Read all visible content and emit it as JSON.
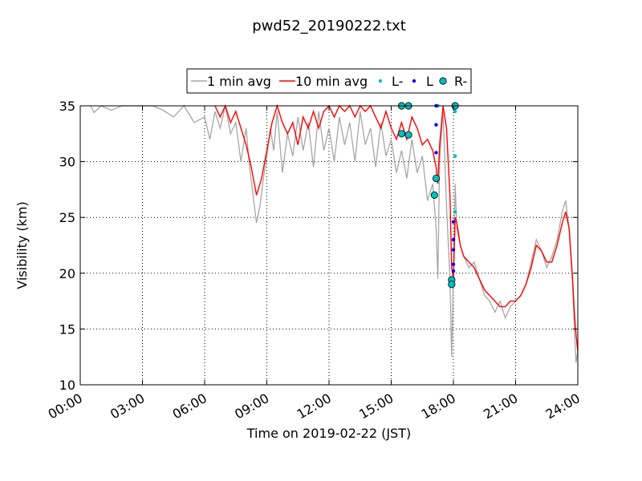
{
  "chart_data": {
    "type": "line",
    "title": "pwd52_20190222.txt",
    "xlabel": "Time on 2019-02-22 (JST)",
    "ylabel": "Visibility (km)",
    "xlim": [
      "00:00",
      "24:00"
    ],
    "ylim": [
      10,
      35
    ],
    "xticks": [
      "00:00",
      "03:00",
      "06:00",
      "09:00",
      "12:00",
      "15:00",
      "18:00",
      "21:00",
      "24:00"
    ],
    "yticks": [
      "10",
      "15",
      "20",
      "25",
      "30",
      "35"
    ],
    "grid": true,
    "legend_position": "top-center",
    "legend": [
      {
        "label": "1 min avg",
        "kind": "line",
        "color": "#a6a6a6"
      },
      {
        "label": "10 min avg",
        "kind": "line",
        "color": "#ff0000"
      },
      {
        "label": "L-",
        "kind": "small-dot",
        "color": "#00bfbf"
      },
      {
        "label": "L",
        "kind": "small-dot",
        "color": "#0000ff"
      },
      {
        "label": "R-",
        "kind": "large-dot",
        "color": "#00bfbf"
      }
    ],
    "series": [
      {
        "name": "1 min avg",
        "color": "#a6a6a6",
        "points": [
          [
            "00:30",
            35.0
          ],
          [
            "00:40",
            34.4
          ],
          [
            "01:00",
            35.0
          ],
          [
            "01:30",
            34.6
          ],
          [
            "02:00",
            35.0
          ],
          [
            "02:30",
            35.0
          ],
          [
            "03:00",
            35.0
          ],
          [
            "03:30",
            35.0
          ],
          [
            "04:00",
            34.6
          ],
          [
            "04:30",
            34.0
          ],
          [
            "05:00",
            35.0
          ],
          [
            "05:30",
            33.5
          ],
          [
            "06:00",
            34.0
          ],
          [
            "06:15",
            32.0
          ],
          [
            "06:30",
            34.5
          ],
          [
            "06:45",
            33.0
          ],
          [
            "07:00",
            35.0
          ],
          [
            "07:15",
            32.5
          ],
          [
            "07:30",
            33.5
          ],
          [
            "07:45",
            30.0
          ],
          [
            "08:00",
            33.0
          ],
          [
            "08:10",
            29.5
          ],
          [
            "08:20",
            27.0
          ],
          [
            "08:30",
            24.5
          ],
          [
            "08:40",
            26.0
          ],
          [
            "08:50",
            28.5
          ],
          [
            "09:00",
            30.5
          ],
          [
            "09:10",
            33.0
          ],
          [
            "09:20",
            31.0
          ],
          [
            "09:30",
            34.5
          ],
          [
            "09:45",
            29.0
          ],
          [
            "10:00",
            32.5
          ],
          [
            "10:15",
            30.5
          ],
          [
            "10:30",
            34.0
          ],
          [
            "10:45",
            31.0
          ],
          [
            "11:00",
            33.5
          ],
          [
            "11:15",
            29.5
          ],
          [
            "11:30",
            34.5
          ],
          [
            "11:45",
            31.0
          ],
          [
            "12:00",
            33.0
          ],
          [
            "12:15",
            30.0
          ],
          [
            "12:30",
            34.0
          ],
          [
            "12:45",
            31.5
          ],
          [
            "13:00",
            33.5
          ],
          [
            "13:15",
            30.0
          ],
          [
            "13:30",
            34.5
          ],
          [
            "13:45",
            31.5
          ],
          [
            "14:00",
            33.0
          ],
          [
            "14:15",
            29.5
          ],
          [
            "14:30",
            33.5
          ],
          [
            "14:45",
            30.5
          ],
          [
            "15:00",
            32.0
          ],
          [
            "15:15",
            29.0
          ],
          [
            "15:30",
            31.0
          ],
          [
            "15:45",
            28.5
          ],
          [
            "16:00",
            32.0
          ],
          [
            "16:15",
            29.0
          ],
          [
            "16:30",
            30.5
          ],
          [
            "16:45",
            26.5
          ],
          [
            "17:00",
            28.0
          ],
          [
            "17:10",
            24.0
          ],
          [
            "17:15",
            19.5
          ],
          [
            "17:20",
            30.0
          ],
          [
            "17:30",
            34.5
          ],
          [
            "17:40",
            26.0
          ],
          [
            "17:50",
            19.5
          ],
          [
            "17:55",
            12.5
          ],
          [
            "18:00",
            20.0
          ],
          [
            "18:05",
            28.0
          ],
          [
            "18:10",
            24.0
          ],
          [
            "18:20",
            22.5
          ],
          [
            "18:30",
            21.5
          ],
          [
            "18:45",
            20.5
          ],
          [
            "19:00",
            21.0
          ],
          [
            "19:15",
            19.5
          ],
          [
            "19:30",
            18.0
          ],
          [
            "19:45",
            17.5
          ],
          [
            "20:00",
            16.5
          ],
          [
            "20:15",
            17.5
          ],
          [
            "20:30",
            16.0
          ],
          [
            "20:45",
            17.0
          ],
          [
            "21:00",
            17.5
          ],
          [
            "21:15",
            18.0
          ],
          [
            "21:30",
            19.0
          ],
          [
            "21:45",
            21.0
          ],
          [
            "22:00",
            23.0
          ],
          [
            "22:15",
            22.0
          ],
          [
            "22:30",
            20.5
          ],
          [
            "22:45",
            21.5
          ],
          [
            "23:00",
            23.0
          ],
          [
            "23:15",
            25.5
          ],
          [
            "23:25",
            26.5
          ],
          [
            "23:35",
            24.0
          ],
          [
            "23:45",
            19.0
          ],
          [
            "23:50",
            15.0
          ],
          [
            "23:55",
            12.0
          ],
          [
            "24:00",
            13.0
          ]
        ]
      },
      {
        "name": "10 min avg",
        "color": "#ff0000",
        "points": [
          [
            "06:30",
            35.0
          ],
          [
            "06:45",
            34.0
          ],
          [
            "07:00",
            35.0
          ],
          [
            "07:15",
            33.5
          ],
          [
            "07:30",
            34.5
          ],
          [
            "07:45",
            33.0
          ],
          [
            "08:00",
            31.5
          ],
          [
            "08:15",
            29.5
          ],
          [
            "08:30",
            27.0
          ],
          [
            "08:45",
            28.5
          ],
          [
            "09:00",
            31.0
          ],
          [
            "09:15",
            33.5
          ],
          [
            "09:30",
            35.0
          ],
          [
            "09:45",
            33.5
          ],
          [
            "10:00",
            32.5
          ],
          [
            "10:15",
            33.5
          ],
          [
            "10:30",
            31.5
          ],
          [
            "10:45",
            34.0
          ],
          [
            "11:00",
            33.0
          ],
          [
            "11:15",
            34.5
          ],
          [
            "11:30",
            33.0
          ],
          [
            "11:45",
            34.5
          ],
          [
            "12:00",
            35.0
          ],
          [
            "12:15",
            34.0
          ],
          [
            "12:30",
            35.0
          ],
          [
            "12:45",
            34.5
          ],
          [
            "13:00",
            35.0
          ],
          [
            "13:15",
            34.0
          ],
          [
            "13:30",
            35.0
          ],
          [
            "13:45",
            34.5
          ],
          [
            "14:00",
            35.0
          ],
          [
            "14:15",
            34.0
          ],
          [
            "14:30",
            33.0
          ],
          [
            "14:45",
            34.5
          ],
          [
            "15:00",
            33.0
          ],
          [
            "15:15",
            32.0
          ],
          [
            "15:30",
            33.5
          ],
          [
            "15:45",
            32.0
          ],
          [
            "16:00",
            34.0
          ],
          [
            "16:15",
            33.0
          ],
          [
            "16:30",
            31.5
          ],
          [
            "16:45",
            32.0
          ],
          [
            "17:00",
            31.0
          ],
          [
            "17:10",
            29.5
          ],
          [
            "17:15",
            28.0
          ],
          [
            "17:20",
            31.5
          ],
          [
            "17:30",
            35.0
          ],
          [
            "17:40",
            33.0
          ],
          [
            "17:50",
            27.0
          ],
          [
            "17:55",
            20.5
          ],
          [
            "18:00",
            19.5
          ],
          [
            "18:05",
            25.0
          ],
          [
            "18:10",
            24.5
          ],
          [
            "18:20",
            22.5
          ],
          [
            "18:30",
            21.5
          ],
          [
            "18:45",
            21.0
          ],
          [
            "19:00",
            20.5
          ],
          [
            "19:15",
            19.5
          ],
          [
            "19:30",
            18.5
          ],
          [
            "19:45",
            18.0
          ],
          [
            "20:00",
            17.5
          ],
          [
            "20:15",
            17.0
          ],
          [
            "20:30",
            17.0
          ],
          [
            "20:45",
            17.5
          ],
          [
            "21:00",
            17.5
          ],
          [
            "21:15",
            18.0
          ],
          [
            "21:30",
            19.0
          ],
          [
            "21:45",
            20.5
          ],
          [
            "22:00",
            22.5
          ],
          [
            "22:15",
            22.0
          ],
          [
            "22:30",
            21.0
          ],
          [
            "22:45",
            21.0
          ],
          [
            "23:00",
            22.5
          ],
          [
            "23:15",
            24.5
          ],
          [
            "23:25",
            25.5
          ],
          [
            "23:35",
            24.0
          ],
          [
            "23:45",
            19.5
          ],
          [
            "23:50",
            16.5
          ],
          [
            "23:55",
            14.5
          ],
          [
            "24:00",
            13.0
          ]
        ]
      },
      {
        "name": "L-",
        "color": "#00bfbf",
        "points": [
          [
            "17:15",
            35.0
          ],
          [
            "18:05",
            34.5
          ],
          [
            "18:05",
            30.5
          ],
          [
            "18:05",
            25.5
          ]
        ]
      },
      {
        "name": "L",
        "color": "#0000ff",
        "points": [
          [
            "17:10",
            35.0
          ],
          [
            "17:10",
            33.3
          ],
          [
            "17:10",
            30.8
          ],
          [
            "18:00",
            24.6
          ],
          [
            "18:00",
            23.0
          ],
          [
            "18:00",
            22.1
          ],
          [
            "18:00",
            20.8
          ],
          [
            "18:00",
            20.2
          ],
          [
            "18:10",
            35.0
          ]
        ]
      },
      {
        "name": "R-",
        "color": "#00bfbf",
        "points": [
          [
            "15:30",
            35.0
          ],
          [
            "15:50",
            35.0
          ],
          [
            "15:30",
            32.5
          ],
          [
            "15:50",
            32.4
          ],
          [
            "17:10",
            28.5
          ],
          [
            "17:05",
            27.0
          ],
          [
            "17:55",
            19.4
          ],
          [
            "17:55",
            19.0
          ],
          [
            "18:05",
            35.0
          ]
        ]
      }
    ]
  }
}
